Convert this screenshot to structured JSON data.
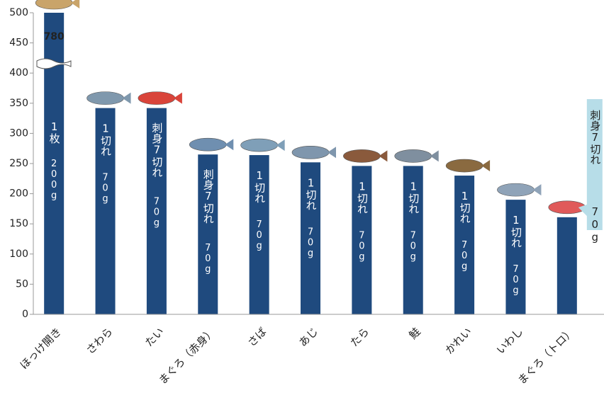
{
  "chart_data": {
    "type": "bar",
    "categories": [
      "ほっけ開き",
      "さわら",
      "たい",
      "まぐろ（赤身）",
      "さば",
      "あじ",
      "たら",
      "鮭",
      "かれい",
      "いわし",
      "まぐろ（トロ）"
    ],
    "series": [
      {
        "color": "#1f4a7e",
        "values": [
          780,
          342,
          342,
          265,
          264,
          252,
          246,
          246,
          230,
          190,
          161
        ],
        "value_labels": [
          "780",
          null,
          null,
          null,
          null,
          null,
          null,
          null,
          null,
          null,
          null
        ]
      }
    ],
    "annotations": [
      {
        "portion": "1枚",
        "weight": "200g"
      },
      {
        "portion": "1切れ",
        "weight": "70g"
      },
      {
        "portion": "刺身7切れ",
        "weight": "70g"
      },
      {
        "portion": "刺身7切れ",
        "weight": "70g"
      },
      {
        "portion": "1切れ",
        "weight": "70g"
      },
      {
        "portion": "1切れ",
        "weight": "70g"
      },
      {
        "portion": "1切れ",
        "weight": "70g"
      },
      {
        "portion": "1切れ",
        "weight": "70g"
      },
      {
        "portion": "1切れ",
        "weight": "70g"
      },
      {
        "portion": "1切れ",
        "weight": "70g"
      },
      {
        "portion": "刺身7切れ",
        "weight": "70g",
        "callout_color": "#b7dde8"
      }
    ],
    "ylim": [
      0,
      500
    ],
    "yticks": [
      0,
      50,
      100,
      150,
      200,
      250,
      300,
      350,
      400,
      450,
      500
    ],
    "grid": false
  }
}
